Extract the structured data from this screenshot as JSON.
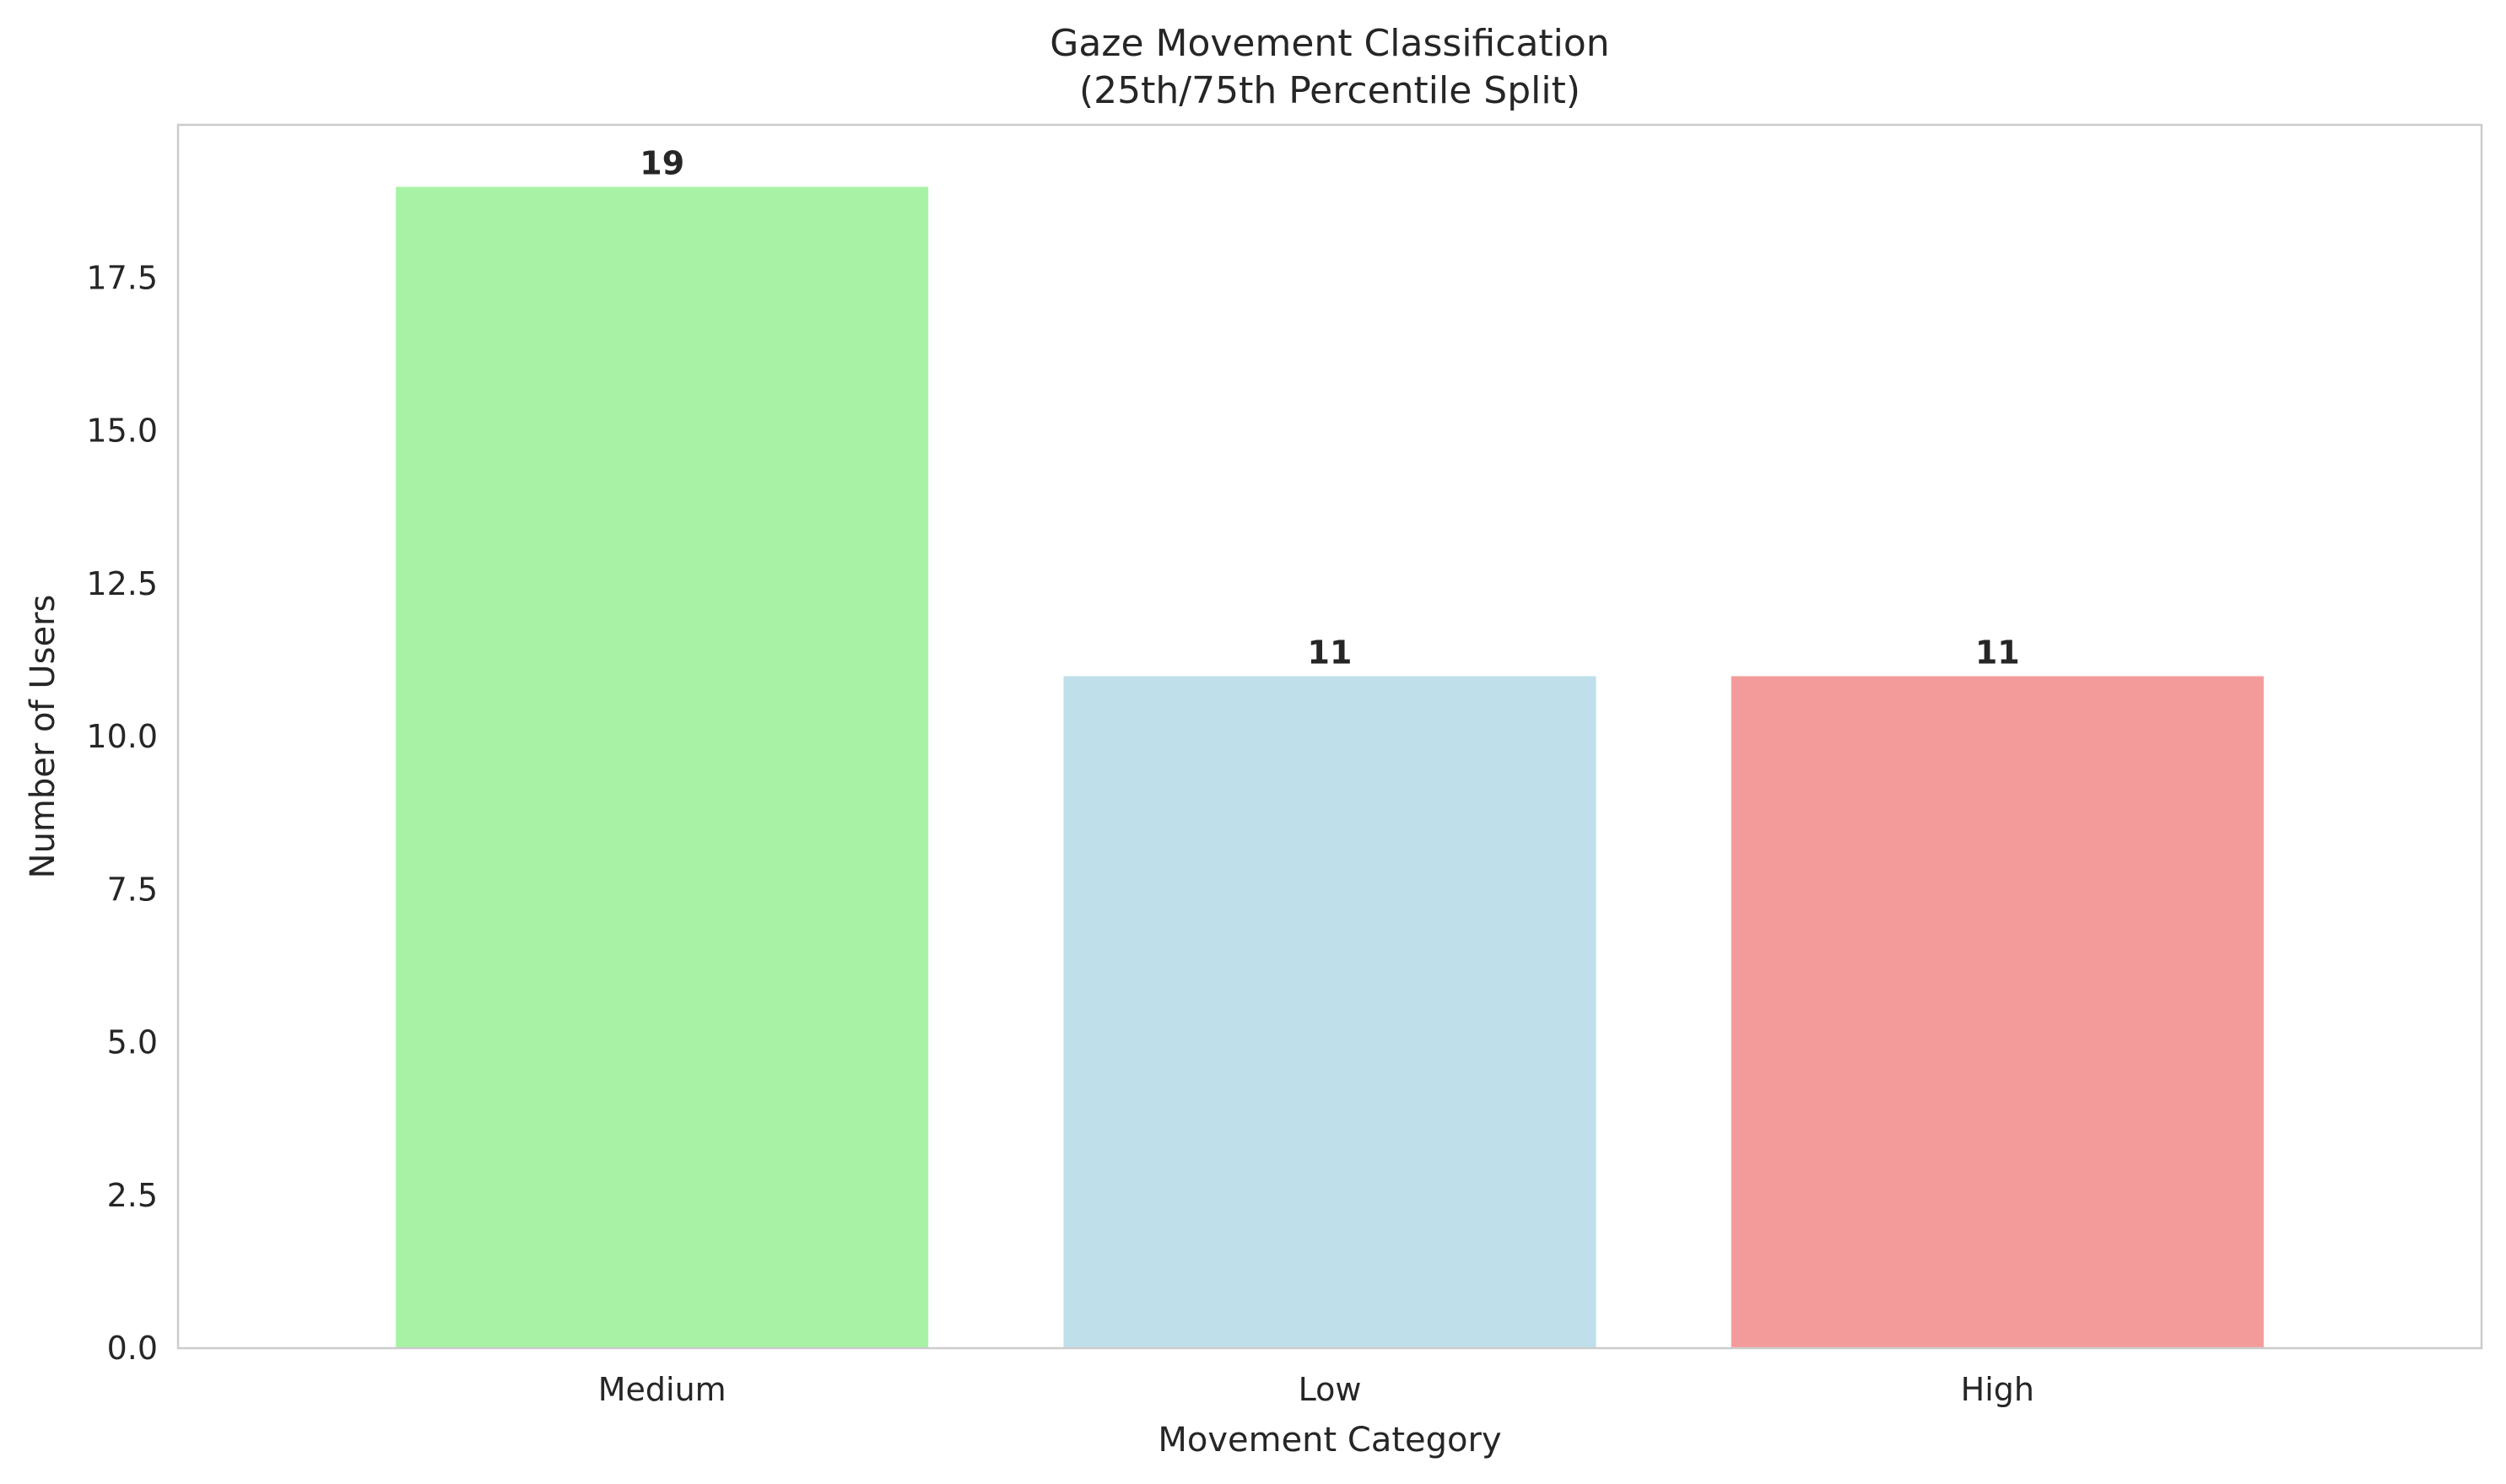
{
  "chart_data": {
    "type": "bar",
    "title_lines": [
      "Gaze Movement Classification",
      "(25th/75th Percentile Split)"
    ],
    "xlabel": "Movement Category",
    "ylabel": "Number of Users",
    "categories": [
      "Medium",
      "Low",
      "High"
    ],
    "values": [
      19,
      11,
      11
    ],
    "value_labels": [
      "19",
      "11",
      "11"
    ],
    "colors": [
      "#a8f2a5",
      "#bfdfea",
      "#f39b9a"
    ],
    "ylim": [
      0,
      20
    ],
    "yticks": [
      0,
      2.5,
      5,
      7.5,
      10,
      12.5,
      15,
      17.5
    ],
    "ytick_labels": [
      "0.0",
      "2.5",
      "5.0",
      "7.5",
      "10.0",
      "12.5",
      "15.0",
      "17.5"
    ],
    "grid": false,
    "legend": "none"
  }
}
